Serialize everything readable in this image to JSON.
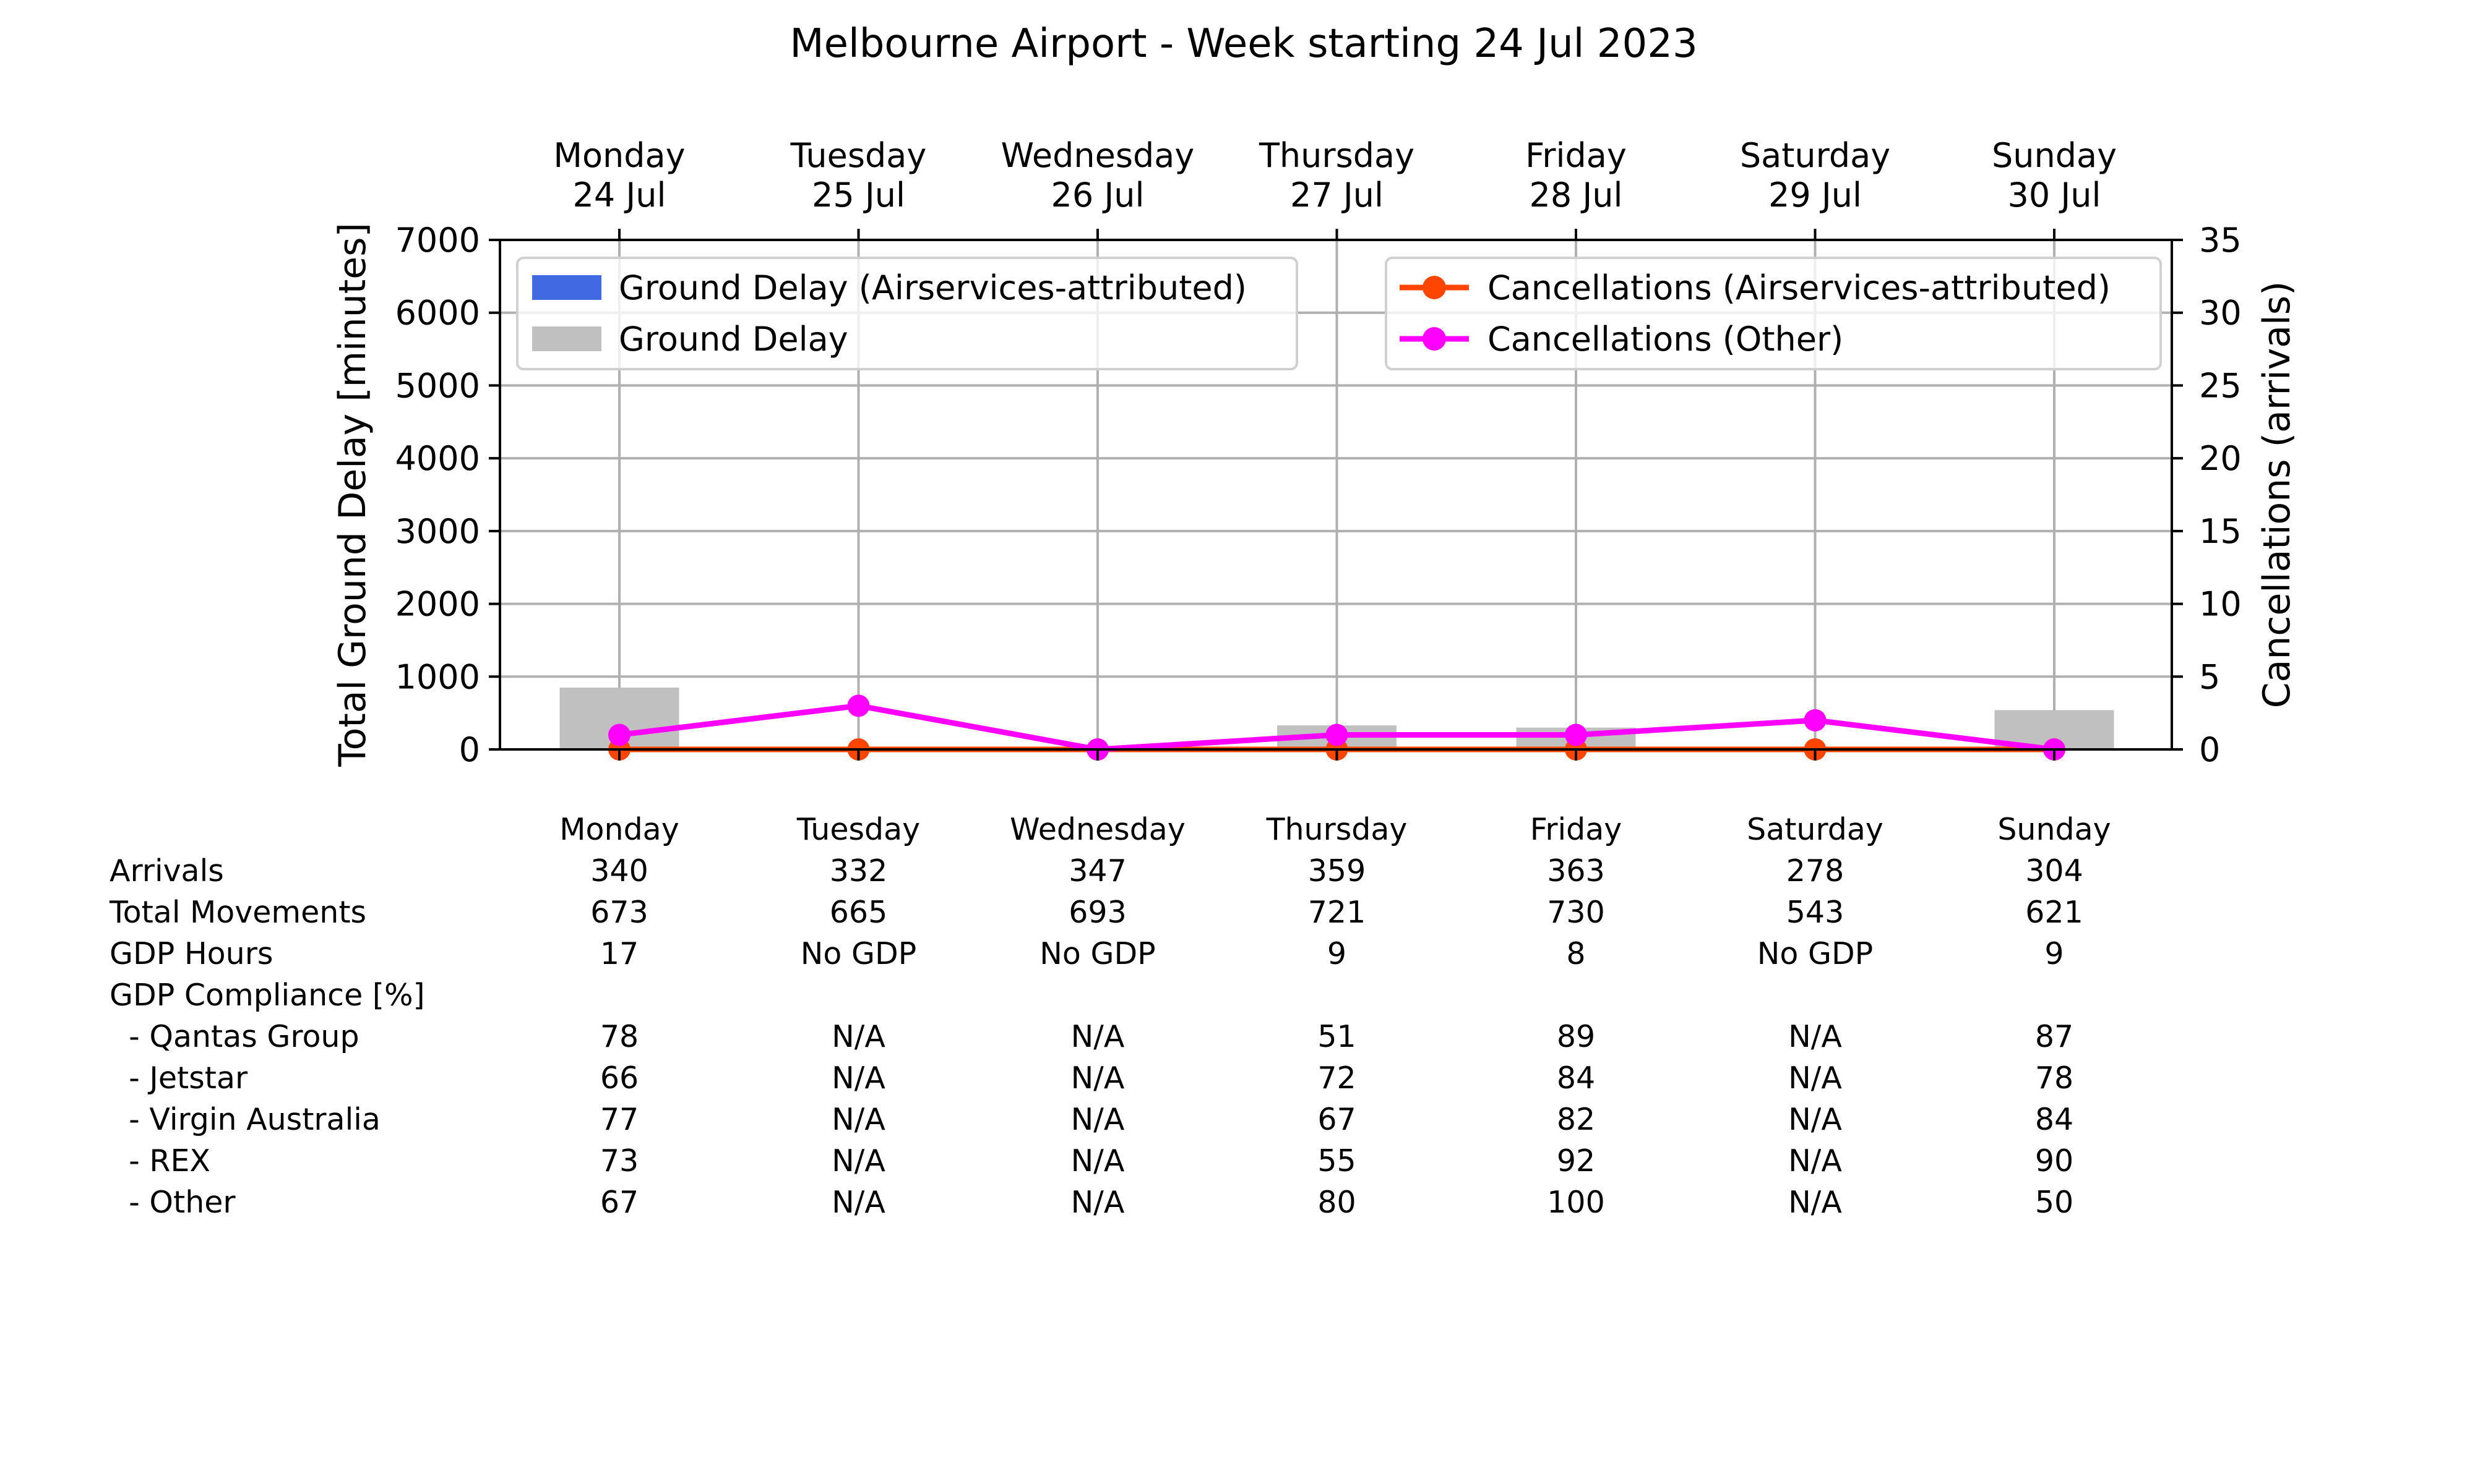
{
  "chart_data": {
    "type": "bar",
    "title": "Melbourne Airport - Week starting 24 Jul 2023",
    "categories": [
      {
        "day": "Monday",
        "date": "24 Jul"
      },
      {
        "day": "Tuesday",
        "date": "25 Jul"
      },
      {
        "day": "Wednesday",
        "date": "26 Jul"
      },
      {
        "day": "Thursday",
        "date": "27 Jul"
      },
      {
        "day": "Friday",
        "date": "28 Jul"
      },
      {
        "day": "Saturday",
        "date": "29 Jul"
      },
      {
        "day": "Sunday",
        "date": "30 Jul"
      }
    ],
    "ylabel_left": "Total Ground Delay [minutes]",
    "ylabel_right": "Cancellations (arrivals)",
    "ylim_left": [
      0,
      7000
    ],
    "ylim_right": [
      0,
      35
    ],
    "yticks_left": [
      0,
      1000,
      2000,
      3000,
      4000,
      5000,
      6000,
      7000
    ],
    "yticks_right": [
      0,
      5,
      10,
      15,
      20,
      25,
      30,
      35
    ],
    "grid": true,
    "bar_series": [
      {
        "name": "Ground Delay (Airservices-attributed)",
        "color": "#4169e1",
        "values": [
          0,
          0,
          0,
          0,
          0,
          0,
          0
        ]
      },
      {
        "name": "Ground Delay",
        "color": "#c0c0c0",
        "values": [
          850,
          0,
          0,
          330,
          300,
          0,
          540
        ]
      }
    ],
    "line_series": [
      {
        "name": "Cancellations (Airservices-attributed)",
        "color": "#ff4500",
        "values": [
          0,
          0,
          0,
          0,
          0,
          0,
          0
        ]
      },
      {
        "name": "Cancellations (Other)",
        "color": "#ff00ff",
        "values": [
          1,
          3,
          0,
          1,
          1,
          2,
          0
        ]
      }
    ],
    "legend_left_position": "upper-left",
    "legend_right_position": "upper-right"
  },
  "table": {
    "header": [
      "Monday",
      "Tuesday",
      "Wednesday",
      "Thursday",
      "Friday",
      "Saturday",
      "Sunday"
    ],
    "rows": [
      {
        "label": "Arrivals",
        "values": [
          "340",
          "332",
          "347",
          "359",
          "363",
          "278",
          "304"
        ]
      },
      {
        "label": "Total Movements",
        "values": [
          "673",
          "665",
          "693",
          "721",
          "730",
          "543",
          "621"
        ]
      },
      {
        "label": "GDP Hours",
        "values": [
          "17",
          "No GDP",
          "No GDP",
          "9",
          "8",
          "No GDP",
          "9"
        ]
      },
      {
        "label": "GDP Compliance [%]",
        "values": [
          "",
          "",
          "",
          "",
          "",
          "",
          ""
        ]
      },
      {
        "label": "  - Qantas Group",
        "values": [
          "78",
          "N/A",
          "N/A",
          "51",
          "89",
          "N/A",
          "87"
        ]
      },
      {
        "label": "  - Jetstar",
        "values": [
          "66",
          "N/A",
          "N/A",
          "72",
          "84",
          "N/A",
          "78"
        ]
      },
      {
        "label": "  - Virgin Australia",
        "values": [
          "77",
          "N/A",
          "N/A",
          "67",
          "82",
          "N/A",
          "84"
        ]
      },
      {
        "label": "  - REX",
        "values": [
          "73",
          "N/A",
          "N/A",
          "55",
          "92",
          "N/A",
          "90"
        ]
      },
      {
        "label": "  - Other",
        "values": [
          "67",
          "N/A",
          "N/A",
          "80",
          "100",
          "N/A",
          "50"
        ]
      }
    ]
  }
}
